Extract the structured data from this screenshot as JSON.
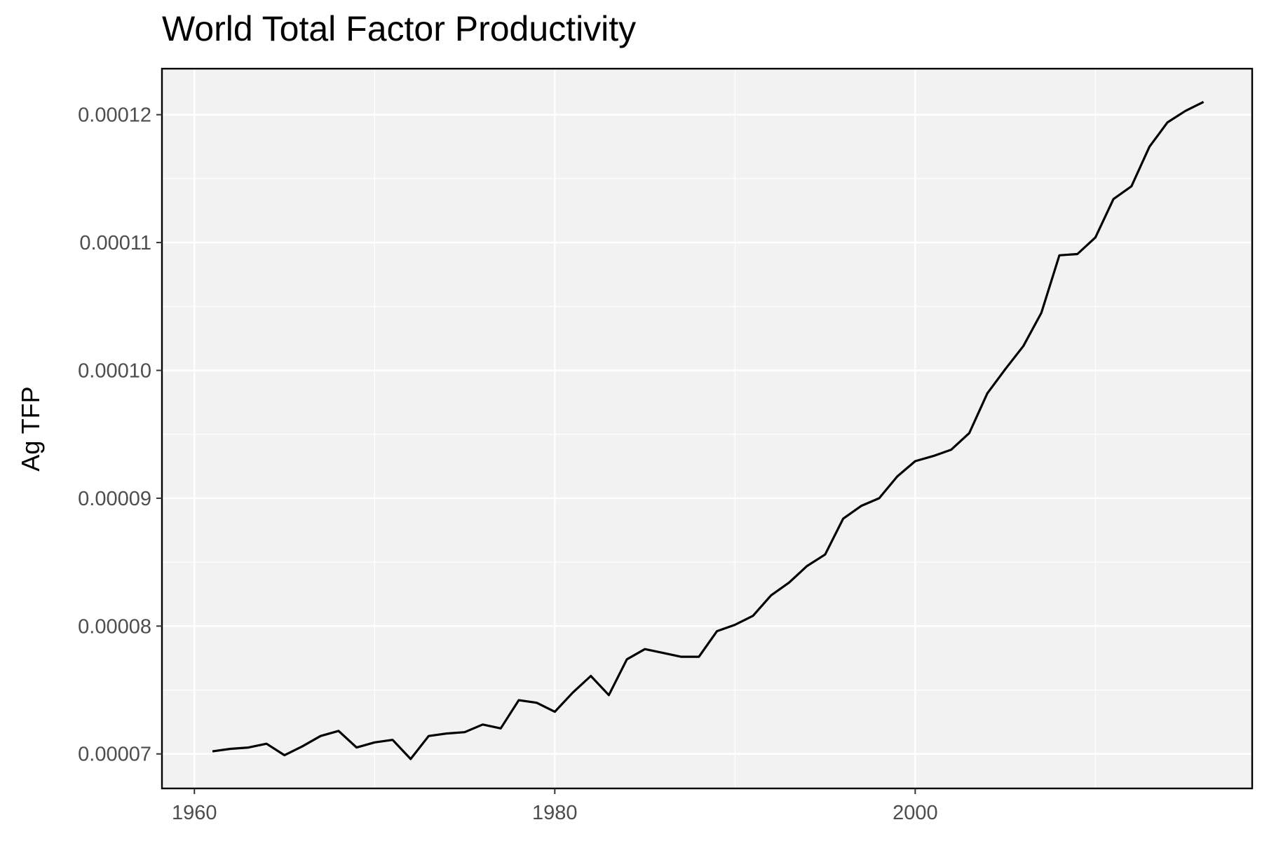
{
  "chart_data": {
    "type": "line",
    "title": "World Total Factor Productivity",
    "xlabel": "",
    "ylabel": "Ag TFP",
    "xlim": [
      1958.2,
      2018.7
    ],
    "ylim": [
      6.73e-05,
      0.0001236
    ],
    "x_ticks": [
      1960,
      1980,
      2000
    ],
    "x_tick_labels": [
      "1960",
      "1980",
      "2000"
    ],
    "y_ticks": [
      7e-05,
      8e-05,
      9e-05,
      0.0001,
      0.00011,
      0.00012
    ],
    "y_tick_labels": [
      "0.00007",
      "0.00008",
      "0.00009",
      "0.00010",
      "0.00011",
      "0.00012"
    ],
    "grid": true,
    "colors": {
      "panel_bg": "#f2f2f2",
      "grid": "#ffffff",
      "line": "#000000",
      "border": "#000000",
      "tick_text": "#4d4d4d"
    },
    "series": [
      {
        "x": [
          1961,
          1962,
          1963,
          1964,
          1965,
          1966,
          1967,
          1968,
          1969,
          1970,
          1971,
          1972,
          1973,
          1974,
          1975,
          1976,
          1977,
          1978,
          1979,
          1980,
          1981,
          1982,
          1983,
          1984,
          1985,
          1986,
          1987,
          1988,
          1989,
          1990,
          1991,
          1992,
          1993,
          1994,
          1995,
          1996,
          1997,
          1998,
          1999,
          2000,
          2001,
          2002,
          2003,
          2004,
          2005,
          2006,
          2007,
          2008,
          2009,
          2010,
          2011,
          2012,
          2013,
          2014,
          2015,
          2016
        ],
        "values": [
          7.02e-05,
          7.04e-05,
          7.05e-05,
          7.08e-05,
          6.99e-05,
          7.06e-05,
          7.14e-05,
          7.18e-05,
          7.05e-05,
          7.09e-05,
          7.11e-05,
          6.96e-05,
          7.14e-05,
          7.16e-05,
          7.17e-05,
          7.23e-05,
          7.2e-05,
          7.42e-05,
          7.4e-05,
          7.33e-05,
          7.48e-05,
          7.61e-05,
          7.46e-05,
          7.74e-05,
          7.82e-05,
          7.79e-05,
          7.76e-05,
          7.76e-05,
          7.96e-05,
          8.01e-05,
          8.08e-05,
          8.24e-05,
          8.34e-05,
          8.47e-05,
          8.56e-05,
          8.84e-05,
          8.94e-05,
          9e-05,
          9.17e-05,
          9.29e-05,
          9.33e-05,
          9.38e-05,
          9.51e-05,
          9.82e-05,
          0.0001001,
          0.0001019,
          0.0001045,
          0.000109,
          0.0001091,
          0.0001104,
          0.0001134,
          0.0001144,
          0.0001175,
          0.0001194,
          0.0001203,
          0.000121
        ]
      }
    ]
  }
}
